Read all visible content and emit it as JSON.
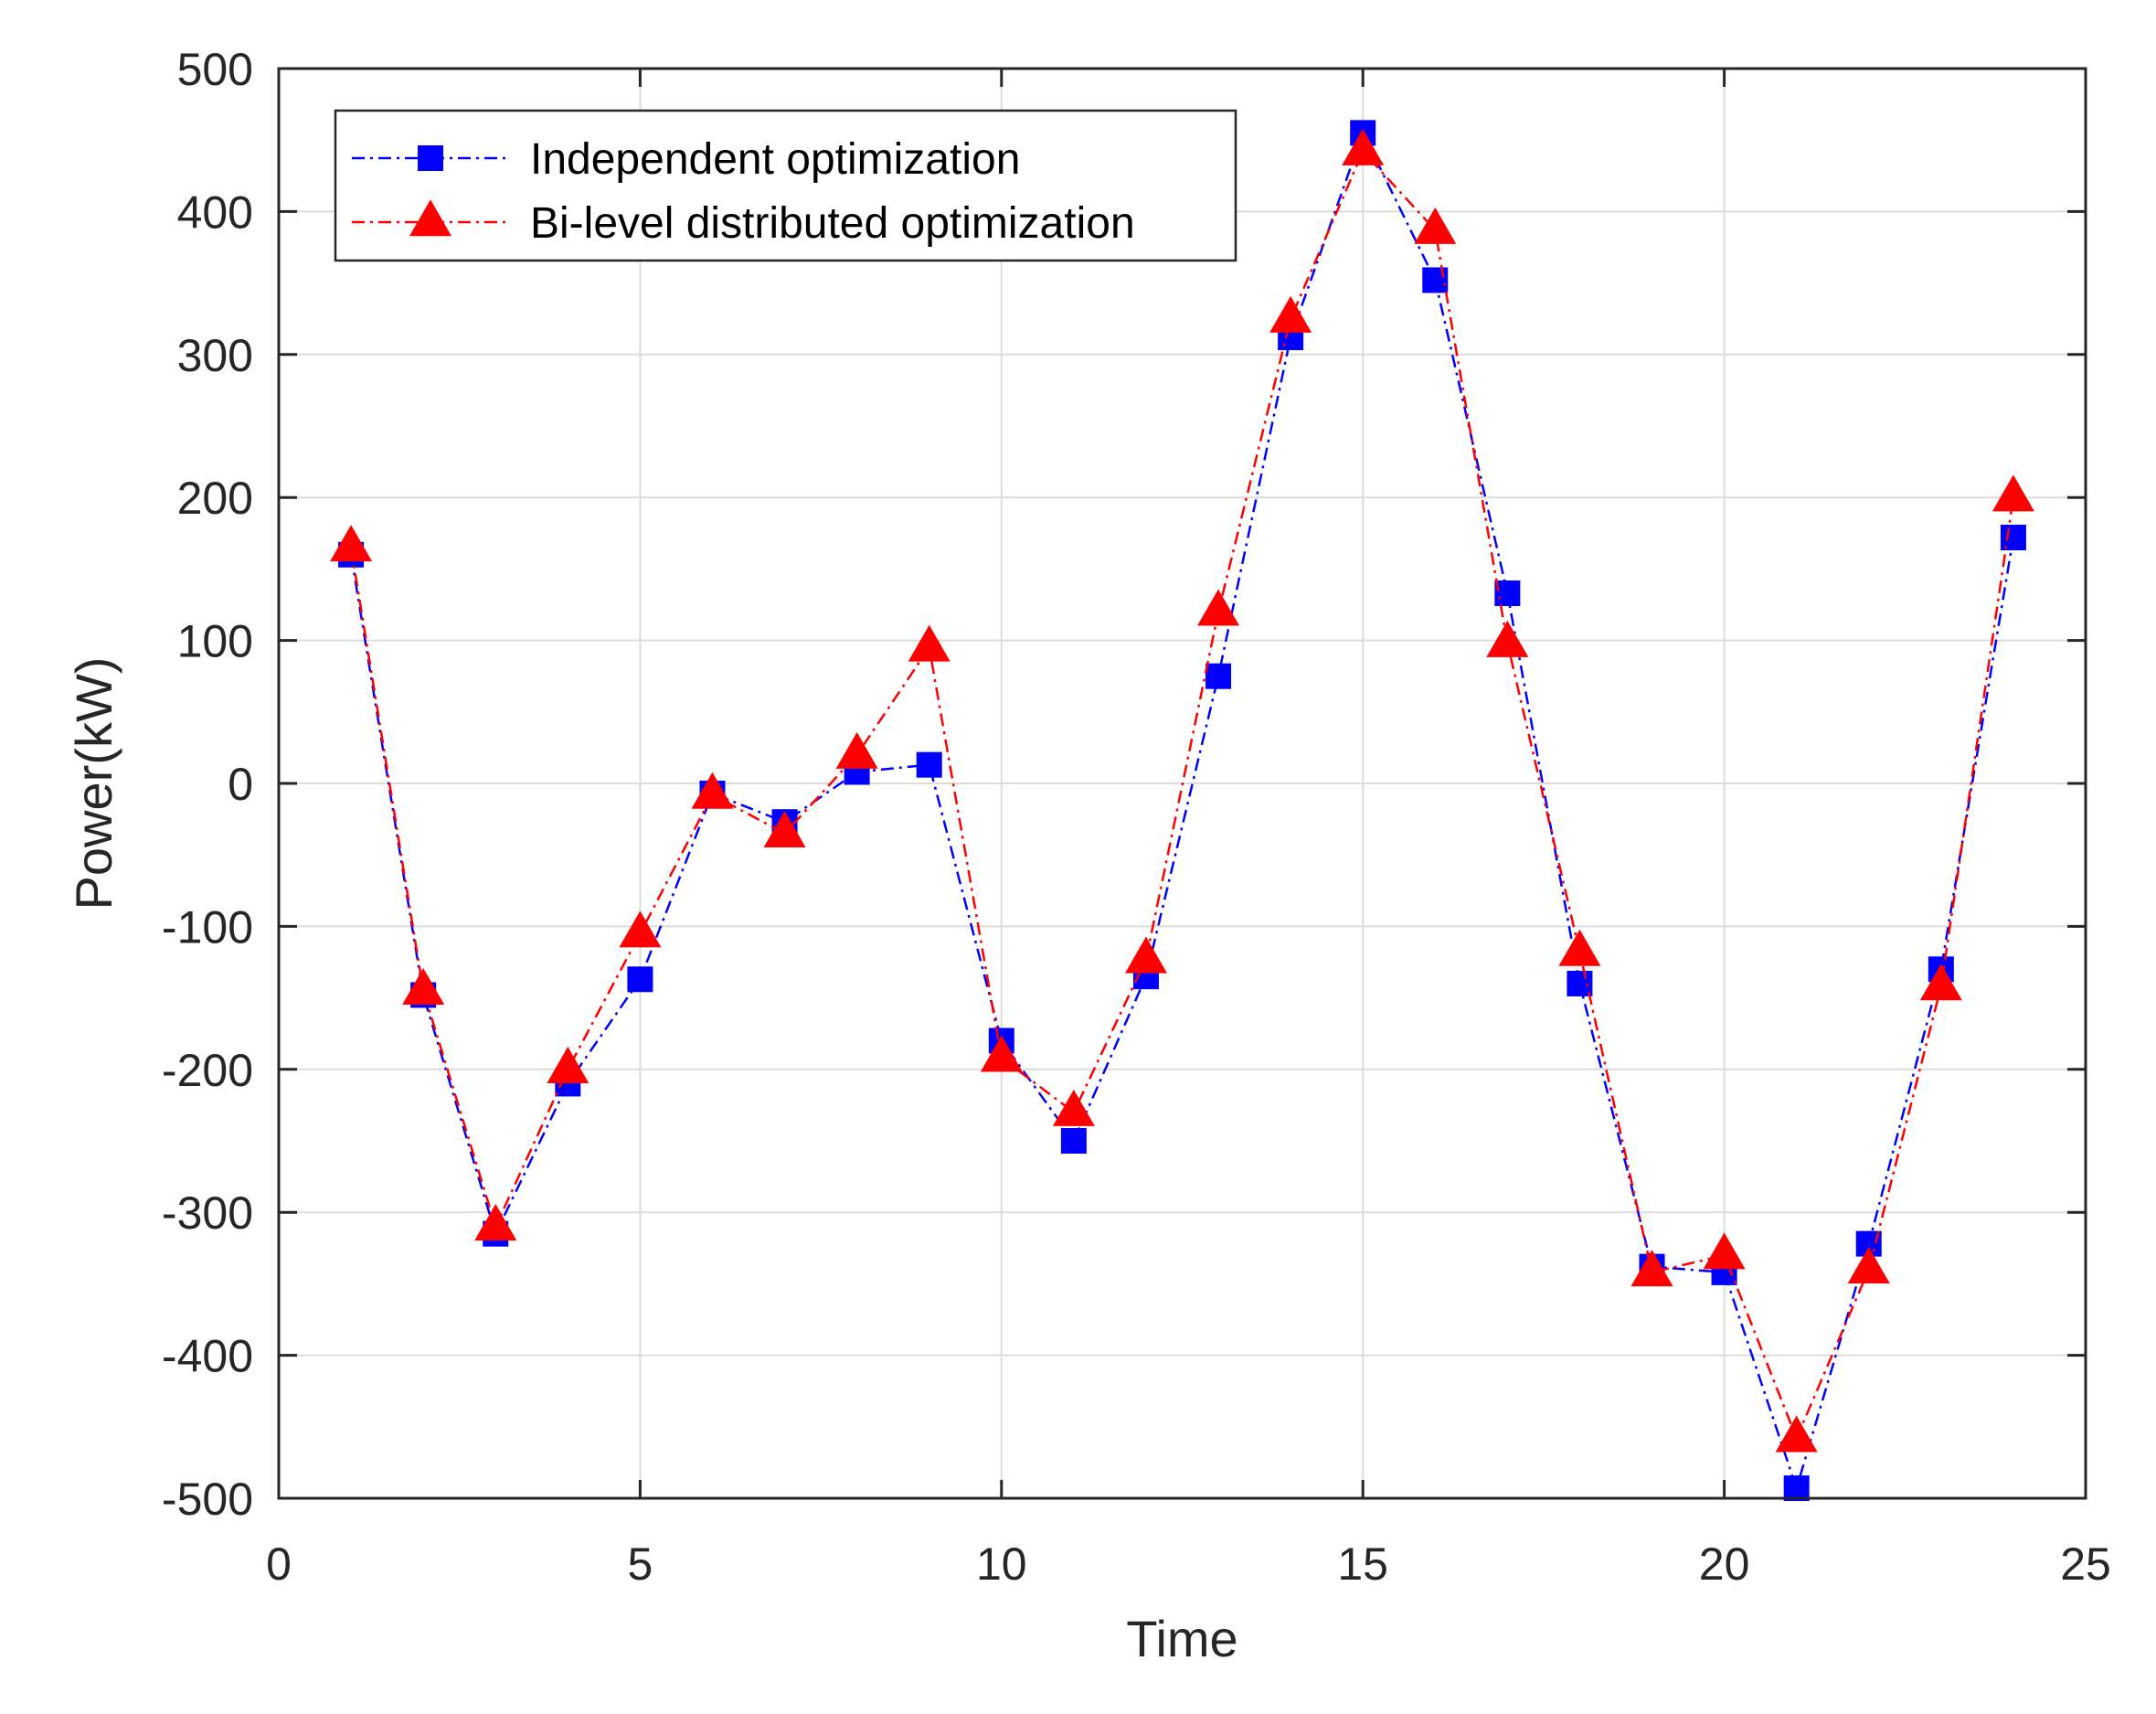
{
  "chart_data": {
    "type": "line",
    "xlabel": "Time",
    "ylabel": "Power(kW)",
    "xlim": [
      0,
      25
    ],
    "ylim": [
      -500,
      500
    ],
    "xticks": [
      0,
      5,
      10,
      15,
      20,
      25
    ],
    "yticks": [
      -500,
      -400,
      -300,
      -200,
      -100,
      0,
      100,
      200,
      300,
      400,
      500
    ],
    "grid": true,
    "legend_position": "top-left",
    "x": [
      1,
      2,
      3,
      4,
      5,
      6,
      7,
      8,
      9,
      10,
      11,
      12,
      13,
      14,
      15,
      16,
      17,
      18,
      19,
      20,
      21,
      22,
      23,
      24
    ],
    "series": [
      {
        "name": "Independent optimization",
        "color": "#0000FF",
        "marker": "square",
        "line_style": "dash-dot",
        "values": [
          160,
          -148,
          -315,
          -210,
          -137,
          -7,
          -27,
          8,
          13,
          -180,
          -250,
          -135,
          75,
          312,
          455,
          352,
          133,
          -140,
          -338,
          -342,
          -493,
          -322,
          -130,
          172
        ]
      },
      {
        "name": "Bi-level distributed optimization",
        "color": "#FF0000",
        "marker": "triangle",
        "line_style": "dash-dot",
        "values": [
          165,
          -145,
          -310,
          -200,
          -105,
          -8,
          -35,
          20,
          95,
          -192,
          -230,
          -123,
          120,
          325,
          442,
          387,
          98,
          -118,
          -342,
          -330,
          -458,
          -340,
          -142,
          200
        ]
      }
    ]
  }
}
